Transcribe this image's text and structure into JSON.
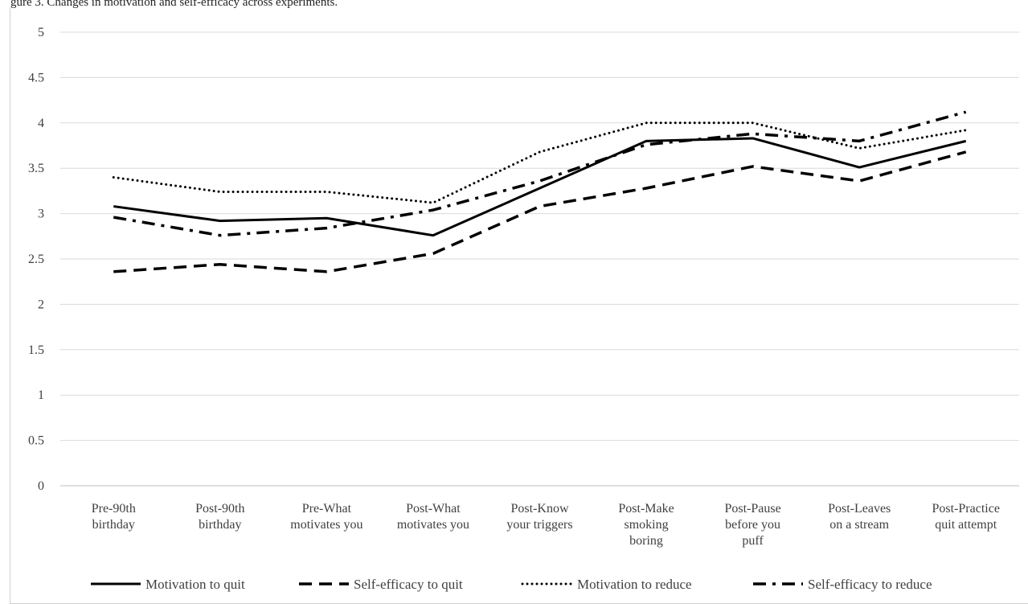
{
  "caption": "gure 3. Changes in motivation and self-efficacy across experiments.",
  "chart_data": {
    "type": "line",
    "title": "",
    "xlabel": "",
    "ylabel": "",
    "ylim": [
      0,
      5
    ],
    "yticks": [
      "0",
      "0.5",
      "1",
      "1.5",
      "2",
      "2.5",
      "3",
      "3.5",
      "4",
      "4.5",
      "5"
    ],
    "grid": "horizontal",
    "legend_position": "bottom",
    "categories": [
      [
        "Pre-90th",
        "birthday"
      ],
      [
        "Post-90th",
        "birthday"
      ],
      [
        "Pre-What",
        "motivates you"
      ],
      [
        "Post-What",
        "motivates you"
      ],
      [
        "Post-Know",
        "your triggers"
      ],
      [
        "Post-Make",
        "smoking",
        "boring"
      ],
      [
        "Post-Pause",
        "before you",
        "puff"
      ],
      [
        "Post-Leaves",
        "on a stream"
      ],
      [
        "Post-Practice",
        "quit attempt"
      ]
    ],
    "series": [
      {
        "name": "Motivation to quit",
        "style": "solid",
        "color": "#000000",
        "values": [
          3.08,
          2.92,
          2.95,
          2.76,
          3.28,
          3.8,
          3.83,
          3.51,
          3.8
        ]
      },
      {
        "name": "Self-efficacy to quit",
        "style": "dash",
        "color": "#000000",
        "values": [
          2.36,
          2.44,
          2.36,
          2.56,
          3.08,
          3.28,
          3.52,
          3.36,
          3.68
        ]
      },
      {
        "name": "Motivation to reduce",
        "style": "dot",
        "color": "#000000",
        "values": [
          3.4,
          3.24,
          3.24,
          3.12,
          3.68,
          4.0,
          4.0,
          3.72,
          3.92
        ]
      },
      {
        "name": "Self-efficacy to reduce",
        "style": "dashdot",
        "color": "#000000",
        "values": [
          2.96,
          2.76,
          2.84,
          3.04,
          3.36,
          3.76,
          3.88,
          3.8,
          4.12
        ]
      }
    ]
  }
}
